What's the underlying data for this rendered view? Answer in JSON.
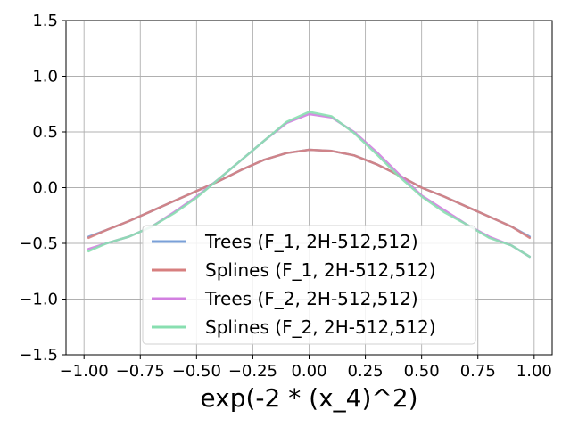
{
  "chart_data": {
    "type": "line",
    "title": "",
    "xlabel": "exp(-2 * (x_4)^2)",
    "ylabel": "",
    "xlim": [
      -1.08,
      1.08
    ],
    "ylim": [
      -1.5,
      1.5
    ],
    "grid": true,
    "legend_position": "lower-center",
    "x_ticks": [
      -1.0,
      -0.75,
      -0.5,
      -0.25,
      0.0,
      0.25,
      0.5,
      0.75,
      1.0
    ],
    "x_tick_labels": [
      "−1.00",
      "−0.75",
      "−0.50",
      "−0.25",
      "0.00",
      "0.25",
      "0.50",
      "0.75",
      "1.00"
    ],
    "y_ticks": [
      -1.5,
      -1.0,
      -0.5,
      0.0,
      0.5,
      1.0,
      1.5
    ],
    "y_tick_labels": [
      "−1.5",
      "−1.0",
      "−0.5",
      "0.0",
      "0.5",
      "1.0",
      "1.5"
    ],
    "series": [
      {
        "name": "Trees (F_1, 2H-512,512)",
        "color": "#7aa0d8",
        "x": [
          -0.98,
          -0.9,
          -0.8,
          -0.7,
          -0.6,
          -0.5,
          -0.4,
          -0.3,
          -0.2,
          -0.1,
          0.0,
          0.1,
          0.2,
          0.3,
          0.4,
          0.5,
          0.6,
          0.7,
          0.8,
          0.9,
          0.98
        ],
        "values": [
          -0.44,
          -0.38,
          -0.3,
          -0.21,
          -0.12,
          -0.03,
          0.06,
          0.16,
          0.25,
          0.31,
          0.34,
          0.33,
          0.29,
          0.21,
          0.11,
          0.0,
          -0.08,
          -0.17,
          -0.26,
          -0.35,
          -0.44
        ]
      },
      {
        "name": "Splines (F_1, 2H-512,512)",
        "color": "#d77f7f",
        "x": [
          -0.98,
          -0.9,
          -0.8,
          -0.7,
          -0.6,
          -0.5,
          -0.4,
          -0.3,
          -0.2,
          -0.1,
          0.0,
          0.1,
          0.2,
          0.3,
          0.4,
          0.5,
          0.6,
          0.7,
          0.8,
          0.9,
          0.98
        ],
        "values": [
          -0.45,
          -0.38,
          -0.3,
          -0.21,
          -0.12,
          -0.03,
          0.06,
          0.16,
          0.25,
          0.31,
          0.34,
          0.33,
          0.29,
          0.21,
          0.11,
          0.0,
          -0.08,
          -0.17,
          -0.26,
          -0.35,
          -0.45
        ]
      },
      {
        "name": "Trees (F_2, 2H-512,512)",
        "color": "#d27fe0",
        "x": [
          -0.98,
          -0.9,
          -0.8,
          -0.7,
          -0.6,
          -0.5,
          -0.4,
          -0.3,
          -0.2,
          -0.1,
          0.0,
          0.1,
          0.2,
          0.3,
          0.4,
          0.5,
          0.6,
          0.7,
          0.8,
          0.9,
          0.98
        ],
        "values": [
          -0.55,
          -0.5,
          -0.44,
          -0.35,
          -0.22,
          -0.08,
          0.08,
          0.25,
          0.42,
          0.58,
          0.66,
          0.63,
          0.5,
          0.32,
          0.12,
          -0.07,
          -0.2,
          -0.33,
          -0.44,
          -0.52,
          -0.62
        ]
      },
      {
        "name": "Splines (F_2, 2H-512,512)",
        "color": "#88dfb0",
        "x": [
          -0.98,
          -0.9,
          -0.8,
          -0.7,
          -0.6,
          -0.5,
          -0.4,
          -0.3,
          -0.2,
          -0.1,
          0.0,
          0.1,
          0.2,
          0.3,
          0.4,
          0.5,
          0.6,
          0.7,
          0.8,
          0.9,
          0.98
        ],
        "values": [
          -0.57,
          -0.5,
          -0.44,
          -0.35,
          -0.23,
          -0.09,
          0.08,
          0.25,
          0.42,
          0.59,
          0.68,
          0.64,
          0.49,
          0.3,
          0.1,
          -0.08,
          -0.22,
          -0.33,
          -0.45,
          -0.52,
          -0.62
        ]
      }
    ]
  }
}
